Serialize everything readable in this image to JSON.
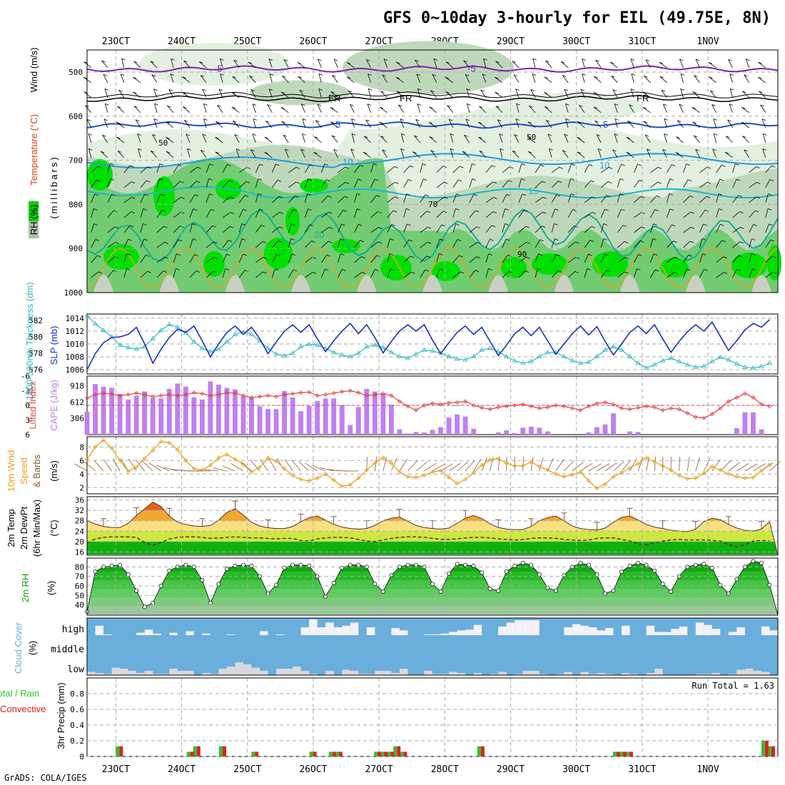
{
  "header": {
    "title": "GFS 0~10day 3-hourly for EIL (49.75E, 8N)",
    "footer": "GrADS: COLA/IGES"
  },
  "dates": [
    "23OCT",
    "24OCT",
    "25OCT",
    "26OCT",
    "27OCT",
    "28OCT",
    "29OCT",
    "30OCT",
    "31OCT",
    "1NOV"
  ],
  "colors": {
    "rh_light": "#e3f0e0",
    "rh_mid": "#bfd8bc",
    "rh_green": "#72cc72",
    "rh_bright": "#00e000",
    "slp": "#1830c0",
    "thickness": "#30b8c0",
    "cape": "#c080f0",
    "lifted": "#e04040",
    "wind": "#e8a020",
    "barb": "#8a5a30",
    "rh2m": "#10a010",
    "cloud": "#6aaedc",
    "cloud_white": "#f4f2f8",
    "precip_total": "#30c030",
    "precip_conv": "#e02020"
  },
  "panels": {
    "upper": {
      "y_label": "(millibars)",
      "legend_rh": "RH (%)",
      "legend_temp": "Temperature (°C)",
      "legend_wind": "Wind (m/s)",
      "ticks": [
        "500",
        "600",
        "700",
        "800",
        "900",
        "1000"
      ],
      "contours": [
        {
          "label": "-5",
          "color": "#8020b0"
        },
        {
          "label": "FR",
          "color": "#000000"
        },
        {
          "label": "5",
          "color": "#1a4fc8"
        },
        {
          "label": "10",
          "color": "#1c9ce0"
        },
        {
          "label": "15",
          "color": "#18b8c8"
        },
        {
          "label": "20",
          "color": "#10b090"
        }
      ],
      "rh_labels": [
        "50",
        "50",
        "70",
        "90"
      ]
    },
    "slp": {
      "label_left": "1000-500mb Thickness (dm)",
      "label_right": "SLP (mb)",
      "ticks_left": [
        "576",
        "578",
        "580",
        "582"
      ],
      "ticks_right": [
        "1006",
        "1008",
        "1010",
        "1012",
        "1014"
      ]
    },
    "cape": {
      "label_left": "Lifted Index",
      "label_right": "CAPE (J/kg)",
      "ticks_left": [
        "-6",
        "-3",
        "0",
        "3",
        "6"
      ],
      "ticks_right": [
        "306",
        "612",
        "918"
      ]
    },
    "wind": {
      "label1": "10m Wind",
      "label2": "Speed",
      "label3": "& Barbs",
      "unit": "(m/s)",
      "ticks": [
        "2",
        "4",
        "6",
        "8"
      ]
    },
    "temp": {
      "label1": "2m Temp",
      "label2": "2m DewPt",
      "label3": "(6hr Min/Max)",
      "unit": "(°C)",
      "ticks": [
        "16",
        "20",
        "24",
        "28",
        "32",
        "36"
      ]
    },
    "rh2m": {
      "label": "2m RH",
      "unit": "(%)",
      "ticks": [
        "40",
        "50",
        "60",
        "70",
        "80"
      ]
    },
    "cloud": {
      "label": "Cloud Cover",
      "unit": "(%)",
      "levels": [
        "high",
        "middle",
        "low"
      ]
    },
    "precip": {
      "label_total": "Total / Rain",
      "label_conv": "Convective",
      "ylabel": "3hr Precip (mm)",
      "run_total": "Run Total = 1.63",
      "ticks": [
        "0",
        "0.2",
        "0.4",
        "0.6",
        "0.8"
      ]
    }
  },
  "chart_data": [
    {
      "type": "line",
      "title": "SLP (mb)",
      "x_unit": "3-hour steps from 22OCT 15Z",
      "ylim": [
        1005,
        1015
      ],
      "values": [
        1006.0,
        1008.5,
        1010.2,
        1011.0,
        1011.1,
        1011.5,
        1012.6,
        1010.0,
        1007.0,
        1009.2,
        1011.0,
        1012.3,
        1011.8,
        1012.8,
        1010.5,
        1008.0,
        1010.0,
        1011.8,
        1012.8,
        1011.5,
        1012.6,
        1010.8,
        1008.5,
        1010.3,
        1012.0,
        1013.0,
        1011.8,
        1013.0,
        1010.8,
        1008.8,
        1010.5,
        1012.0,
        1013.2,
        1011.6,
        1013.0,
        1011.0,
        1008.6,
        1010.4,
        1012.0,
        1013.0,
        1012.0,
        1013.0,
        1010.6,
        1008.5,
        1010.2,
        1011.8,
        1012.8,
        1011.5,
        1012.6,
        1010.4,
        1008.2,
        1009.8,
        1011.6,
        1012.6,
        1011.3,
        1012.6,
        1010.5,
        1008.4,
        1010.0,
        1011.6,
        1012.8,
        1011.4,
        1012.7,
        1010.4,
        1008.3,
        1010.0,
        1011.8,
        1012.8,
        1011.6,
        1013.0,
        1010.8,
        1008.7,
        1010.4,
        1011.9,
        1013.0,
        1012.0,
        1013.4,
        1011.2,
        1009.0,
        1010.5,
        1012.2,
        1013.2,
        1012.6,
        1013.8
      ]
    },
    {
      "type": "line",
      "title": "1000-500mb Thickness (dm)",
      "ylim": [
        575.5,
        582.5
      ],
      "values": [
        582.6,
        581.6,
        580.8,
        580.0,
        579.0,
        578.7,
        578.5,
        578.8,
        579.8,
        580.8,
        581.5,
        581.2,
        580.5,
        579.4,
        578.6,
        578.2,
        578.5,
        579.4,
        580.3,
        580.6,
        580.3,
        579.5,
        578.6,
        577.9,
        577.7,
        578.0,
        578.8,
        579.1,
        579.0,
        578.6,
        578.1,
        577.8,
        577.6,
        578.0,
        578.8,
        579.0,
        578.7,
        578.1,
        577.6,
        577.4,
        577.9,
        578.4,
        578.3,
        578.0,
        577.6,
        577.3,
        577.2,
        577.6,
        578.4,
        578.6,
        578.2,
        577.6,
        577.1,
        576.8,
        577.0,
        577.6,
        578.1,
        578.1,
        577.6,
        577.1,
        576.8,
        576.9,
        577.6,
        578.4,
        578.8,
        578.4,
        577.6,
        576.8,
        576.2,
        576.6,
        577.1,
        577.4,
        577.0,
        576.6,
        576.3,
        576.4,
        577.0,
        577.5,
        577.2,
        576.7,
        576.3,
        576.2,
        576.4,
        576.8
      ]
    },
    {
      "type": "bar",
      "title": "CAPE (J/kg)",
      "ylim": [
        0,
        1100
      ],
      "values": [
        430,
        950,
        900,
        880,
        760,
        660,
        730,
        810,
        690,
        680,
        860,
        960,
        900,
        700,
        660,
        1000,
        940,
        880,
        850,
        720,
        700,
        530,
        480,
        480,
        820,
        700,
        440,
        540,
        630,
        680,
        680,
        550,
        180,
        520,
        860,
        810,
        770,
        560,
        100,
        20,
        50,
        40,
        90,
        140,
        320,
        380,
        340,
        110,
        0,
        0,
        40,
        80,
        30,
        130,
        150,
        130,
        60,
        0,
        0,
        0,
        0,
        40,
        140,
        190,
        400,
        0,
        60,
        50,
        0,
        0,
        0,
        0,
        0,
        0,
        0,
        0,
        0,
        0,
        0,
        120,
        420,
        420,
        100,
        0
      ]
    },
    {
      "type": "line",
      "title": "Lifted Index",
      "ylim": [
        6,
        -6
      ],
      "values": [
        -1.5,
        -2.2,
        -2.5,
        -2.3,
        -2.0,
        -2.2,
        -2.5,
        -2.2,
        -1.8,
        -2.0,
        -2.2,
        -2.0,
        -2.2,
        -2.6,
        -2.4,
        -2.0,
        -2.2,
        -2.6,
        -2.5,
        -2.0,
        -1.6,
        -1.8,
        -2.0,
        -1.8,
        -2.2,
        -2.4,
        -2.6,
        -2.7,
        -2.0,
        -2.2,
        -2.5,
        -2.8,
        -3.0,
        -2.6,
        -2.0,
        -2.2,
        -2.4,
        -2.0,
        -0.8,
        0.2,
        1.0,
        0.0,
        -0.4,
        -0.2,
        -0.5,
        -0.6,
        -0.8,
        0.0,
        0.5,
        0.8,
        0.4,
        0.2,
        0.0,
        -0.2,
        0.2,
        0.6,
        0.4,
        0.0,
        0.2,
        0.6,
        1.0,
        0.2,
        -0.4,
        -0.6,
        -0.2,
        0.6,
        0.8,
        0.5,
        0.2,
        0.4,
        1.0,
        0.6,
        0.8,
        1.6,
        2.4,
        2.6,
        1.8,
        0.6,
        -0.8,
        -1.6,
        -2.4,
        -1.6,
        -0.2,
        0.2
      ]
    },
    {
      "type": "line",
      "title": "10m Wind Speed (m/s)",
      "ylim": [
        1.5,
        9.5
      ],
      "values": [
        6.2,
        8.0,
        9.0,
        7.8,
        6.0,
        4.4,
        5.0,
        6.3,
        7.5,
        8.8,
        8.6,
        7.6,
        6.0,
        4.8,
        4.6,
        5.3,
        6.4,
        6.9,
        6.2,
        5.4,
        4.3,
        5.0,
        6.4,
        5.9,
        4.8,
        3.8,
        3.2,
        3.0,
        3.4,
        4.0,
        3.1,
        2.2,
        2.4,
        3.4,
        4.6,
        5.6,
        6.4,
        5.6,
        4.3,
        3.6,
        3.5,
        3.8,
        4.3,
        4.5,
        3.5,
        2.6,
        3.2,
        4.2,
        5.3,
        6.1,
        6.3,
        5.6,
        5.2,
        5.2,
        5.8,
        5.1,
        4.6,
        4.0,
        3.6,
        3.9,
        4.3,
        3.0,
        1.9,
        2.5,
        3.6,
        4.2,
        4.9,
        5.5,
        6.4,
        5.8,
        5.2,
        4.6,
        3.8,
        3.3,
        3.4,
        4.1,
        5.1,
        4.6,
        4.0,
        3.6,
        3.4,
        3.5,
        4.5,
        5.4
      ]
    },
    {
      "type": "area",
      "title": "2m Temp (°C)",
      "ylim": [
        15,
        37
      ],
      "values": [
        28.0,
        26.8,
        25.8,
        25.4,
        25.4,
        27.0,
        30.0,
        32.6,
        35.2,
        33.5,
        29.8,
        27.5,
        26.6,
        26.0,
        25.8,
        26.2,
        28.2,
        31.2,
        32.6,
        30.2,
        27.4,
        26.0,
        25.3,
        25.0,
        25.0,
        25.8,
        27.6,
        29.2,
        29.8,
        28.2,
        26.6,
        25.6,
        25.0,
        24.8,
        25.0,
        26.2,
        28.0,
        29.0,
        29.4,
        27.8,
        26.2,
        25.4,
        25.0,
        24.8,
        25.2,
        27.0,
        29.0,
        30.0,
        28.8,
        26.8,
        25.4,
        24.8,
        24.6,
        24.6,
        25.8,
        28.0,
        29.2,
        29.8,
        28.0,
        26.0,
        25.0,
        24.6,
        24.4,
        25.2,
        27.4,
        29.3,
        29.8,
        28.3,
        26.6,
        25.6,
        25.0,
        24.4,
        24.0,
        23.8,
        24.8,
        27.6,
        29.0,
        28.4,
        26.6,
        25.2,
        24.3,
        24.0,
        24.8,
        27.6
      ]
    },
    {
      "type": "line",
      "title": "2m DewPt (°C)",
      "ylim": [
        15,
        37
      ],
      "values": [
        19.5,
        21.0,
        21.6,
        21.8,
        21.8,
        21.8,
        21.6,
        19.6,
        18.6,
        19.6,
        21.0,
        21.6,
        21.8,
        21.8,
        21.6,
        21.2,
        21.3,
        21.6,
        21.8,
        21.6,
        21.4,
        21.4,
        21.2,
        21.0,
        21.2,
        21.2,
        20.4,
        20.2,
        21.0,
        21.4,
        21.6,
        21.6,
        21.4,
        20.8,
        20.2,
        20.0,
        20.6,
        21.2,
        21.6,
        21.8,
        21.8,
        21.6,
        21.2,
        20.8,
        20.8,
        21.0,
        21.4,
        21.6,
        21.6,
        21.4,
        21.0,
        20.8,
        20.6,
        20.8,
        21.2,
        21.4,
        21.4,
        21.2,
        20.8,
        20.6,
        20.4,
        20.6,
        21.2,
        21.4,
        21.4,
        20.8,
        20.2,
        19.2,
        18.8,
        19.4,
        20.2,
        20.6,
        20.8,
        20.6,
        20.6,
        20.6,
        20.4,
        20.2,
        18.8,
        18.0,
        18.8,
        20.2,
        20.4,
        20.2
      ]
    },
    {
      "type": "area",
      "title": "2m RH (%)",
      "ylim": [
        30,
        90
      ],
      "values": [
        33,
        75,
        80,
        81,
        82,
        72,
        55,
        38,
        42,
        60,
        76,
        80,
        82,
        80,
        66,
        42,
        62,
        78,
        81,
        82,
        81,
        70,
        52,
        61,
        79,
        82,
        82,
        81,
        70,
        49,
        63,
        79,
        82,
        82,
        80,
        62,
        54,
        71,
        80,
        82,
        82,
        80,
        62,
        54,
        73,
        83,
        82,
        81,
        74,
        57,
        55,
        75,
        81,
        84,
        82,
        72,
        58,
        55,
        71,
        80,
        84,
        82,
        72,
        52,
        55,
        75,
        81,
        84,
        82,
        76,
        62,
        54,
        70,
        80,
        82,
        83,
        79,
        61,
        52,
        67,
        80,
        86,
        84,
        61
      ]
    },
    {
      "type": "bar",
      "title": "Cloud Cover high (%)",
      "ylim": [
        0,
        100
      ],
      "values": [
        0,
        60,
        5,
        0,
        0,
        0,
        15,
        35,
        10,
        0,
        15,
        0,
        25,
        0,
        10,
        0,
        0,
        5,
        0,
        0,
        0,
        25,
        0,
        5,
        0,
        0,
        50,
        100,
        50,
        80,
        50,
        60,
        80,
        0,
        50,
        0,
        0,
        45,
        30,
        0,
        0,
        5,
        5,
        10,
        20,
        30,
        35,
        65,
        0,
        0,
        55,
        80,
        95,
        95,
        95,
        0,
        0,
        0,
        50,
        70,
        60,
        50,
        30,
        45,
        0,
        60,
        0,
        0,
        60,
        20,
        20,
        40,
        55,
        0,
        80,
        65,
        40,
        0,
        20,
        50,
        0,
        0,
        55,
        30
      ]
    },
    {
      "type": "bar",
      "title": "Cloud Cover low (%)",
      "ylim": [
        0,
        100
      ],
      "values": [
        15,
        10,
        5,
        35,
        30,
        20,
        10,
        20,
        5,
        5,
        30,
        20,
        20,
        0,
        10,
        5,
        30,
        40,
        60,
        50,
        35,
        20,
        0,
        30,
        30,
        40,
        20,
        5,
        0,
        20,
        0,
        25,
        20,
        5,
        5,
        20,
        20,
        10,
        30,
        0,
        0,
        20,
        5,
        5,
        15,
        10,
        0,
        10,
        0,
        5,
        15,
        0,
        5,
        20,
        20,
        5,
        0,
        5,
        15,
        0,
        15,
        5,
        10,
        5,
        0,
        10,
        5,
        0,
        10,
        30,
        0,
        0,
        0,
        0,
        5,
        5,
        10,
        0,
        5,
        25,
        30,
        20,
        15,
        0
      ]
    },
    {
      "type": "bar",
      "title": "3hr Precip (mm)",
      "ylim": [
        0,
        1
      ],
      "series": [
        {
          "name": "Total / Rain",
          "points": [
            [
              5,
              0.13
            ],
            [
              16,
              0.06
            ],
            [
              17,
              0.13
            ],
            [
              21,
              0.13
            ],
            [
              26,
              0.06
            ],
            [
              35,
              0.06
            ],
            [
              38,
              0.06
            ],
            [
              39,
              0.06
            ],
            [
              45,
              0.06
            ],
            [
              46,
              0.06
            ],
            [
              47,
              0.06
            ],
            [
              48,
              0.13
            ],
            [
              49,
              0.06
            ],
            [
              61,
              0.13
            ],
            [
              82,
              0.06
            ],
            [
              83,
              0.06
            ],
            [
              84,
              0.06
            ],
            [
              105,
              0.2
            ],
            [
              106,
              0.13
            ]
          ]
        },
        {
          "name": "Convective",
          "points": [
            [
              5,
              0.13
            ],
            [
              16,
              0.06
            ],
            [
              17,
              0.13
            ],
            [
              21,
              0.13
            ],
            [
              26,
              0.06
            ],
            [
              35,
              0.06
            ],
            [
              38,
              0.06
            ],
            [
              39,
              0.06
            ],
            [
              45,
              0.06
            ],
            [
              46,
              0.06
            ],
            [
              47,
              0.06
            ],
            [
              48,
              0.13
            ],
            [
              49,
              0.06
            ],
            [
              61,
              0.13
            ],
            [
              82,
              0.06
            ],
            [
              83,
              0.06
            ],
            [
              84,
              0.06
            ],
            [
              105,
              0.2
            ],
            [
              106,
              0.13
            ]
          ]
        }
      ]
    }
  ]
}
